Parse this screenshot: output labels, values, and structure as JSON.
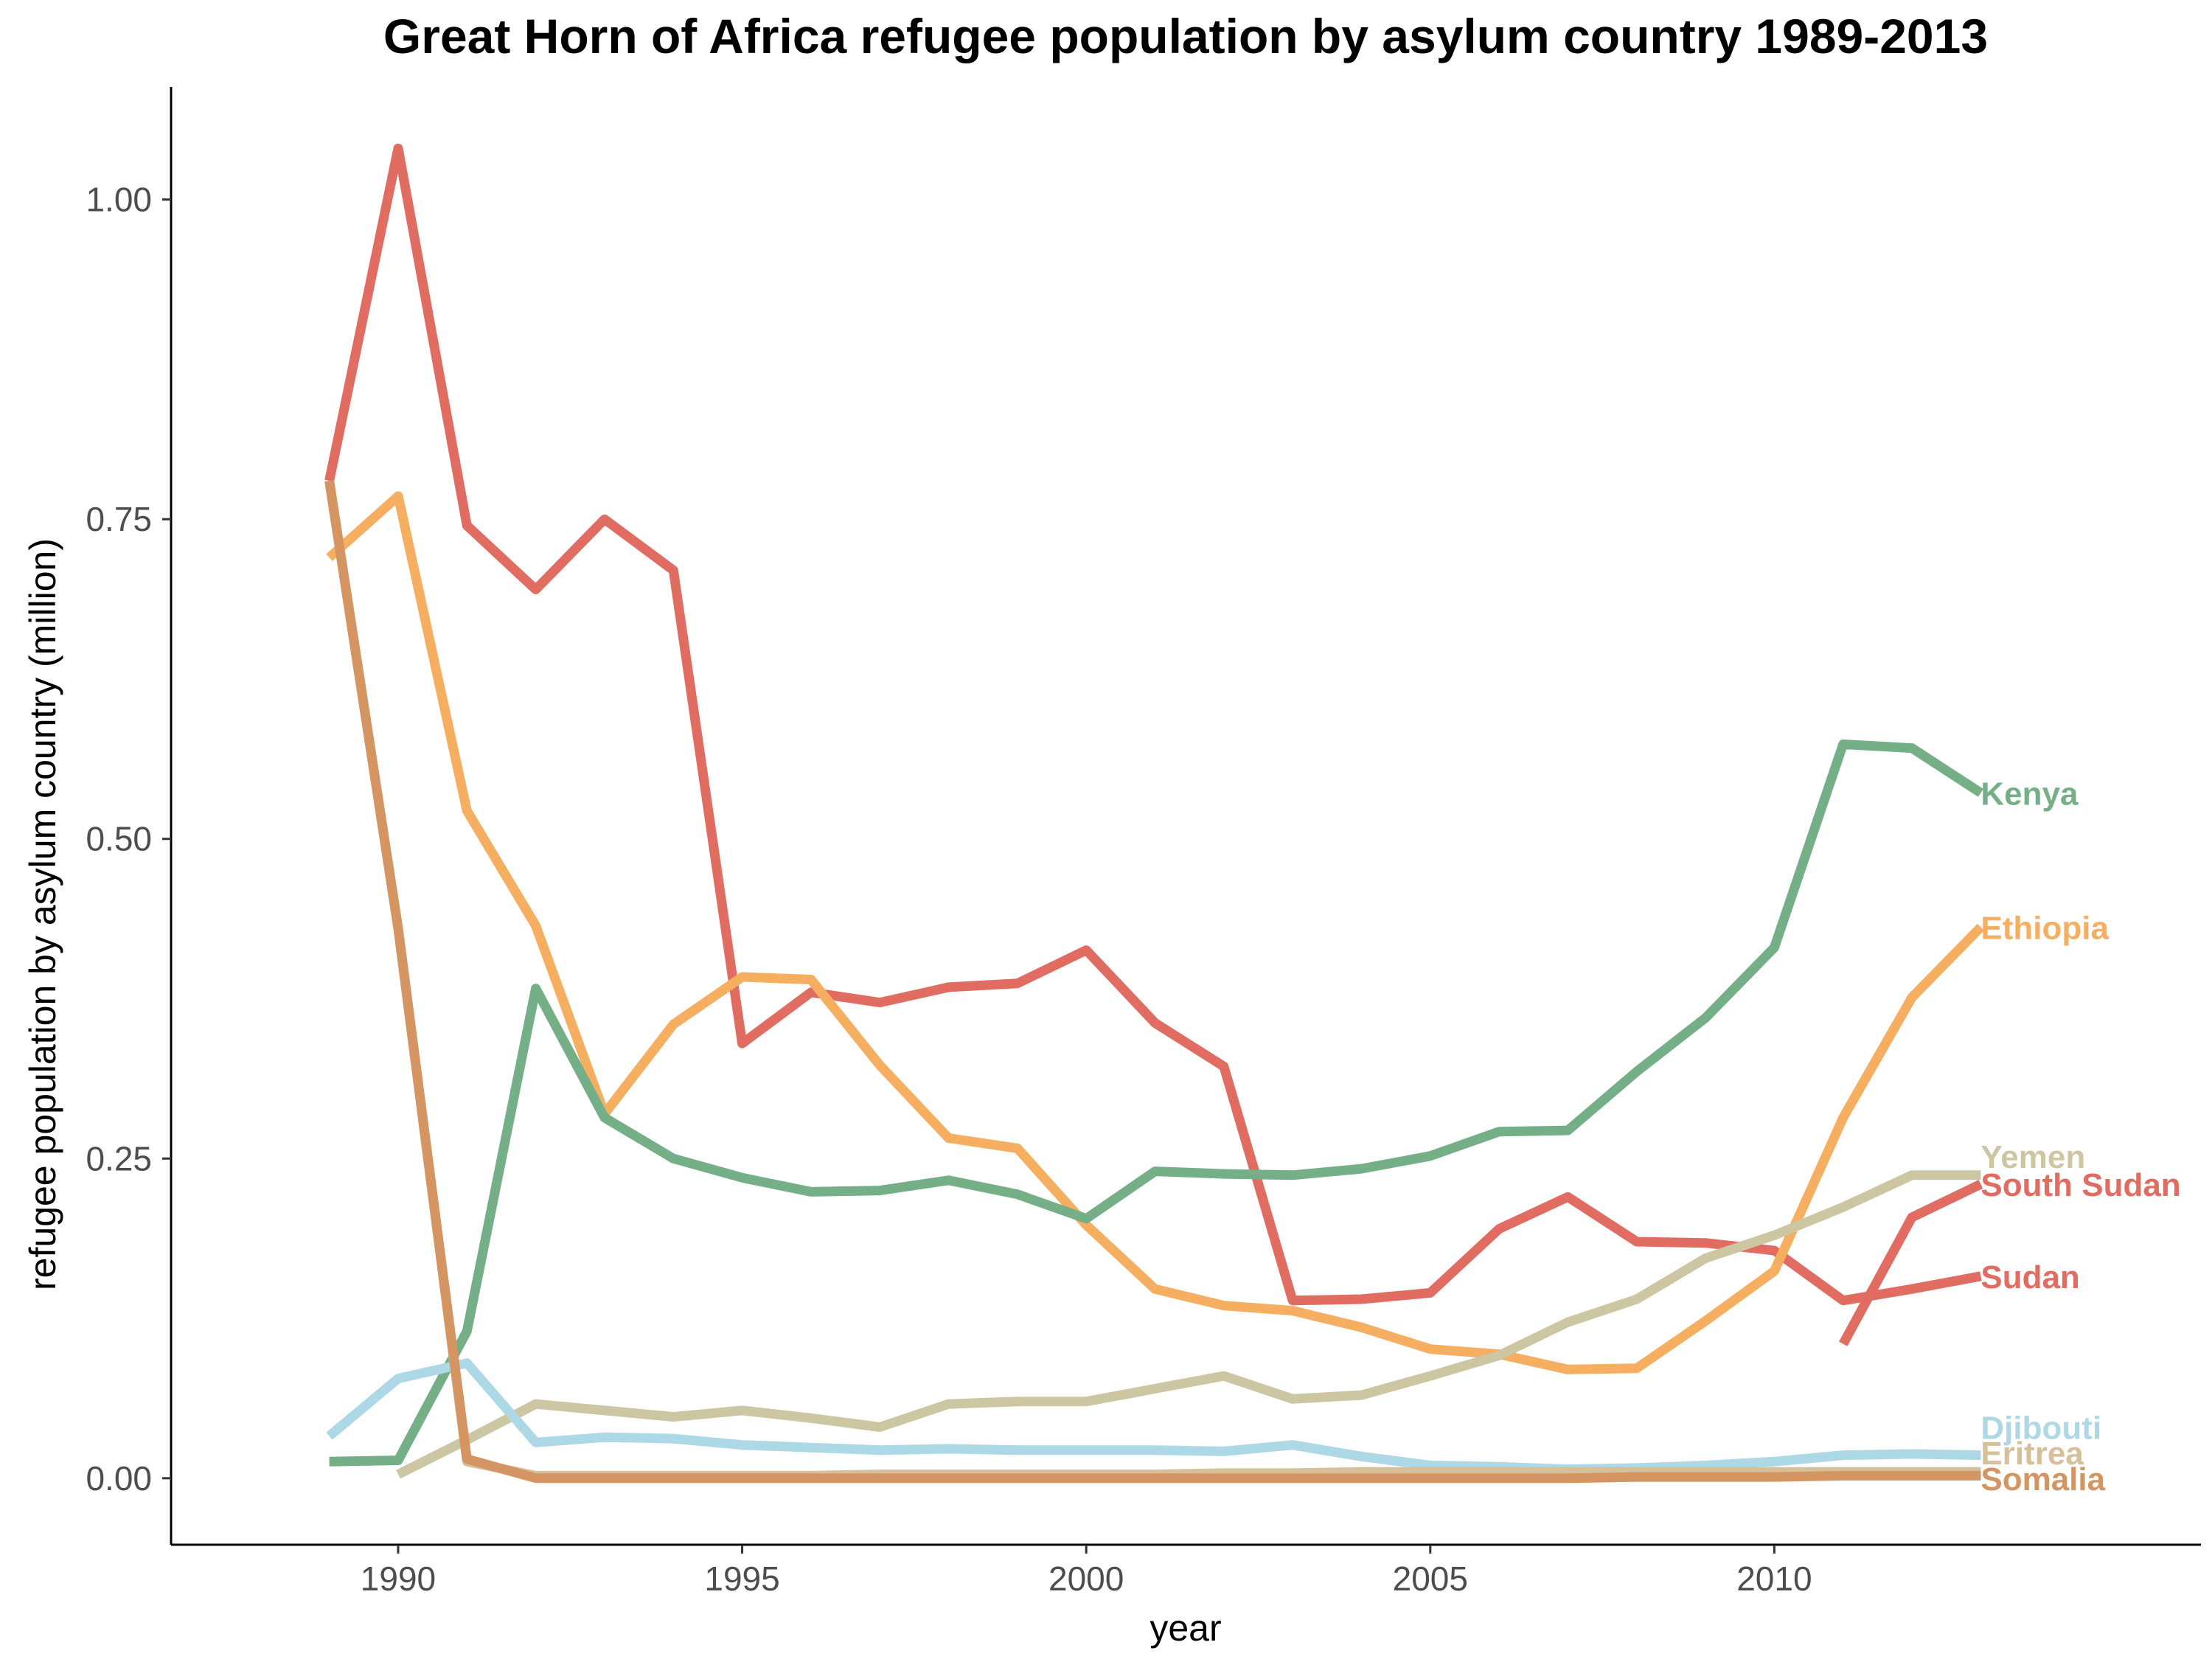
{
  "chart_data": {
    "type": "line",
    "title": "Great Horn of Africa refugee population by asylum country 1989-2013",
    "xlabel": "year",
    "ylabel": "refugee population by asylum country (million)",
    "xlim": [
      1986.7,
      2016.2
    ],
    "ylim": [
      -0.052,
      1.088
    ],
    "x_ticks": [
      1990,
      1995,
      2000,
      2005,
      2010
    ],
    "x_tick_labels": [
      "1990",
      "1995",
      "2000",
      "2005",
      "2010"
    ],
    "y_ticks": [
      0,
      0.25,
      0.5,
      0.75,
      1.0
    ],
    "y_tick_labels": [
      "0.00",
      "0.25",
      "0.50",
      "0.75",
      "1.00"
    ],
    "grid": false,
    "legend": "direct labels at line ends",
    "series": [
      {
        "name": "Sudan",
        "color": "#E06C62",
        "x": [
          1989,
          1990,
          1991,
          1992,
          1993,
          1994,
          1995,
          1996,
          1997,
          1998,
          1999,
          2000,
          2001,
          2002,
          2003,
          2004,
          2005,
          2006,
          2007,
          2008,
          2009,
          2010,
          2011,
          2012,
          2013
        ],
        "values": [
          0.78,
          1.04,
          0.745,
          0.695,
          0.75,
          0.71,
          0.34,
          0.38,
          0.372,
          0.384,
          0.387,
          0.413,
          0.356,
          0.322,
          0.139,
          0.14,
          0.145,
          0.195,
          0.22,
          0.185,
          0.184,
          0.178,
          0.139,
          0.148,
          0.158
        ]
      },
      {
        "name": "South Sudan",
        "color": "#E06C62",
        "x": [
          2011,
          2012,
          2013
        ],
        "values": [
          0.105,
          0.204,
          0.23
        ]
      },
      {
        "name": "Ethiopia",
        "color": "#F6AE60",
        "x": [
          1989,
          1990,
          1991,
          1992,
          1993,
          1994,
          1995,
          1996,
          1997,
          1998,
          1999,
          2000,
          2001,
          2002,
          2003,
          2004,
          2005,
          2006,
          2007,
          2008,
          2009,
          2010,
          2011,
          2012,
          2013
        ],
        "values": [
          0.72,
          0.768,
          0.522,
          0.432,
          0.285,
          0.355,
          0.392,
          0.39,
          0.323,
          0.266,
          0.258,
          0.198,
          0.148,
          0.135,
          0.131,
          0.118,
          0.101,
          0.097,
          0.085,
          0.086,
          0.123,
          0.162,
          0.282,
          0.376,
          0.431
        ]
      },
      {
        "name": "Kenya",
        "color": "#75AF88",
        "x": [
          1989,
          1990,
          1991,
          1992,
          1993,
          1994,
          1995,
          1996,
          1997,
          1998,
          1999,
          2000,
          2001,
          2002,
          2003,
          2004,
          2005,
          2006,
          2007,
          2008,
          2009,
          2010,
          2011,
          2012,
          2013
        ],
        "values": [
          0.013,
          0.014,
          0.115,
          0.383,
          0.282,
          0.25,
          0.235,
          0.224,
          0.225,
          0.233,
          0.222,
          0.203,
          0.24,
          0.238,
          0.237,
          0.242,
          0.252,
          0.271,
          0.272,
          0.318,
          0.36,
          0.415,
          0.574,
          0.571,
          0.536
        ]
      },
      {
        "name": "Yemen",
        "color": "#CCC7A2",
        "x": [
          1990,
          1991,
          1992,
          1993,
          1994,
          1995,
          1996,
          1997,
          1998,
          1999,
          2000,
          2001,
          2002,
          2003,
          2004,
          2005,
          2006,
          2007,
          2008,
          2009,
          2010,
          2011,
          2012,
          2013
        ],
        "values": [
          0.003,
          0.03,
          0.058,
          0.053,
          0.048,
          0.053,
          0.047,
          0.04,
          0.058,
          0.06,
          0.06,
          0.07,
          0.08,
          0.062,
          0.065,
          0.08,
          0.096,
          0.122,
          0.14,
          0.172,
          0.19,
          0.212,
          0.237,
          0.237
        ]
      },
      {
        "name": "Djibouti",
        "color": "#ADD8E6",
        "x": [
          1989,
          1990,
          1991,
          1992,
          1993,
          1994,
          1995,
          1996,
          1997,
          1998,
          1999,
          2000,
          2001,
          2002,
          2003,
          2004,
          2005,
          2006,
          2007,
          2008,
          2009,
          2010,
          2011,
          2012,
          2013
        ],
        "values": [
          0.033,
          0.078,
          0.09,
          0.028,
          0.032,
          0.031,
          0.026,
          0.024,
          0.022,
          0.023,
          0.022,
          0.022,
          0.022,
          0.021,
          0.026,
          0.017,
          0.01,
          0.009,
          0.007,
          0.008,
          0.01,
          0.013,
          0.018,
          0.019,
          0.018
        ]
      },
      {
        "name": "Eritrea",
        "color": "#D6C09A",
        "x": [
          1989,
          1990,
          1991,
          1992,
          1993,
          1994,
          1995,
          1996,
          1997,
          1998,
          1999,
          2000,
          2001,
          2002,
          2003,
          2004,
          2005,
          2006,
          2007,
          2008,
          2009,
          2010,
          2011,
          2012,
          2013
        ],
        "values": [
          0.78,
          0.43,
          0.013,
          0.002,
          0.002,
          0.002,
          0.002,
          0.002,
          0.003,
          0.003,
          0.003,
          0.003,
          0.003,
          0.004,
          0.004,
          0.005,
          0.005,
          0.005,
          0.005,
          0.005,
          0.005,
          0.005,
          0.005,
          0.005,
          0.005
        ]
      },
      {
        "name": "Somalia",
        "color": "#D59562",
        "x": [
          1989,
          1990,
          1991,
          1992,
          1993,
          1994,
          1995,
          1996,
          1997,
          1998,
          1999,
          2000,
          2001,
          2002,
          2003,
          2004,
          2005,
          2006,
          2007,
          2008,
          2009,
          2010,
          2011,
          2012,
          2013
        ],
        "values": [
          0.78,
          0.43,
          0.015,
          0.0,
          0.0,
          0.0,
          0.0,
          0.0,
          0.0,
          0.0,
          0.0,
          0.0,
          0.0,
          0.0,
          0.0,
          0.0,
          0.0,
          0.0,
          0.0,
          0.001,
          0.001,
          0.001,
          0.002,
          0.002,
          0.002
        ]
      }
    ],
    "line_labels": [
      {
        "text": "Kenya",
        "color": "#75AF88",
        "x": 2013,
        "y": 0.536
      },
      {
        "text": "Ethiopia",
        "color": "#F6AE60",
        "x": 2013,
        "y": 0.431
      },
      {
        "text": "Yemen",
        "color": "#CCC7A2",
        "x": 2013,
        "y": 0.252
      },
      {
        "text": "South Sudan",
        "color": "#E06C62",
        "x": 2013,
        "y": 0.23
      },
      {
        "text": "Sudan",
        "color": "#E06C62",
        "x": 2013,
        "y": 0.158
      },
      {
        "text": "Djibouti",
        "color": "#ADD8E6",
        "x": 2013,
        "y": 0.04
      },
      {
        "text": "Eritrea",
        "color": "#D6C09A",
        "x": 2013,
        "y": 0.02
      },
      {
        "text": "Somalia",
        "color": "#D59562",
        "x": 2013,
        "y": 0.0
      }
    ]
  }
}
